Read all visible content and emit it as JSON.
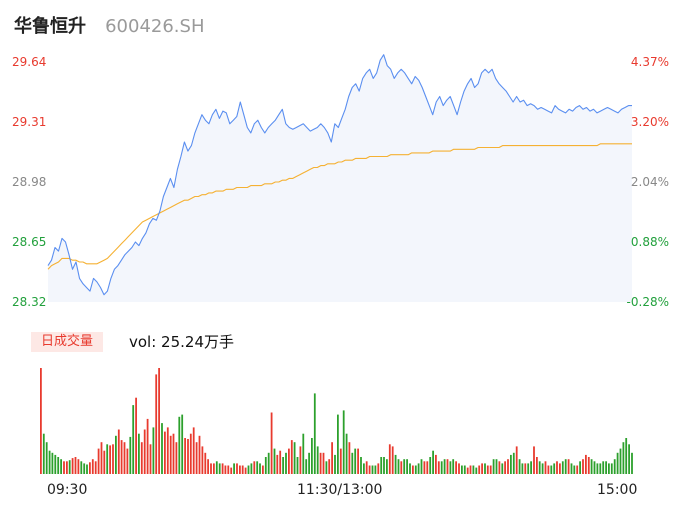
{
  "stock": {
    "name": "华鲁恒升",
    "code": "600426.SH"
  },
  "volume_panel": {
    "badge": "日成交量",
    "vol_label": "vol: 25.24万手"
  },
  "colors": {
    "price_line": "#5b8ff0",
    "avg_line": "#f5b133",
    "up": "#e83a2e",
    "down": "#2ca02c",
    "fill": "#f3f6fc",
    "axis_up": "#e83a2e",
    "axis_mid": "#888888",
    "axis_down": "#22a03c"
  },
  "chart_data": [
    {
      "type": "line",
      "title": "",
      "xlabel": "",
      "ylabel": "",
      "ylim": [
        28.32,
        29.64
      ],
      "y_ticks": [
        "29.64",
        "29.31",
        "28.98",
        "28.65",
        "28.32"
      ],
      "y2_ticks": [
        "4.37%",
        "3.20%",
        "2.04%",
        "0.88%",
        "-0.28%"
      ],
      "x_ticks": [
        "09:30",
        "11:30/13:00",
        "15:00"
      ],
      "series": [
        {
          "values": [
            28.52,
            28.55,
            28.62,
            28.6,
            28.67,
            28.65,
            28.58,
            28.5,
            28.54,
            28.45,
            28.42,
            28.4,
            28.38,
            28.45,
            28.43,
            28.4,
            28.36,
            28.38,
            28.45,
            28.5,
            28.52,
            28.55,
            28.58,
            28.6,
            28.62,
            28.65,
            28.63,
            28.67,
            28.7,
            28.75,
            28.78,
            28.77,
            28.82,
            28.9,
            28.95,
            29.0,
            28.95,
            29.05,
            29.12,
            29.2,
            29.15,
            29.18,
            29.25,
            29.3,
            29.35,
            29.32,
            29.3,
            29.35,
            29.38,
            29.33,
            29.37,
            29.36,
            29.3,
            29.32,
            29.34,
            29.42,
            29.35,
            29.28,
            29.25,
            29.3,
            29.32,
            29.28,
            29.25,
            29.28,
            29.3,
            29.32,
            29.35,
            29.38,
            29.3,
            29.28,
            29.27,
            29.28,
            29.29,
            29.3,
            29.28,
            29.26,
            29.27,
            29.28,
            29.3,
            29.28,
            29.25,
            29.2,
            29.3,
            29.28,
            29.33,
            29.38,
            29.45,
            29.5,
            29.52,
            29.48,
            29.55,
            29.58,
            29.6,
            29.55,
            29.58,
            29.65,
            29.68,
            29.62,
            29.6,
            29.55,
            29.58,
            29.6,
            29.58,
            29.55,
            29.52,
            29.56,
            29.54,
            29.5,
            29.45,
            29.4,
            29.35,
            29.42,
            29.45,
            29.4,
            29.43,
            29.45,
            29.4,
            29.35,
            29.42,
            29.48,
            29.52,
            29.55,
            29.5,
            29.52,
            29.58,
            29.6,
            29.58,
            29.6,
            29.55,
            29.52,
            29.5,
            29.48,
            29.45,
            29.42,
            29.45,
            29.42,
            29.43,
            29.4,
            29.41,
            29.4,
            29.38,
            29.39,
            29.38,
            29.37,
            29.36,
            29.4,
            29.38,
            29.37,
            29.36,
            29.38,
            29.37,
            29.39,
            29.4,
            29.38,
            29.39,
            29.37,
            29.38,
            29.36,
            29.37,
            29.38,
            29.39,
            29.38,
            29.37,
            29.36,
            29.38,
            29.39,
            29.4,
            29.4
          ]
        },
        {
          "values": [
            28.5,
            28.52,
            28.53,
            28.54,
            28.56,
            28.56,
            28.56,
            28.55,
            28.55,
            28.54,
            28.54,
            28.53,
            28.53,
            28.53,
            28.53,
            28.54,
            28.55,
            28.56,
            28.58,
            28.6,
            28.62,
            28.64,
            28.66,
            28.68,
            28.7,
            28.72,
            28.74,
            28.76,
            28.77,
            28.78,
            28.79,
            28.8,
            28.81,
            28.82,
            28.83,
            28.84,
            28.85,
            28.86,
            28.87,
            28.88,
            28.88,
            28.89,
            28.9,
            28.9,
            28.91,
            28.91,
            28.92,
            28.92,
            28.93,
            28.93,
            28.93,
            28.94,
            28.94,
            28.94,
            28.95,
            28.95,
            28.95,
            28.95,
            28.96,
            28.96,
            28.96,
            28.96,
            28.97,
            28.97,
            28.97,
            28.98,
            28.98,
            28.99,
            28.99,
            29.0,
            29.0,
            29.01,
            29.02,
            29.03,
            29.04,
            29.05,
            29.06,
            29.06,
            29.07,
            29.07,
            29.08,
            29.08,
            29.08,
            29.09,
            29.09,
            29.1,
            29.1,
            29.1,
            29.11,
            29.11,
            29.11,
            29.11,
            29.12,
            29.12,
            29.12,
            29.12,
            29.12,
            29.12,
            29.13,
            29.13,
            29.13,
            29.13,
            29.13,
            29.13,
            29.14,
            29.14,
            29.14,
            29.14,
            29.14,
            29.14,
            29.15,
            29.15,
            29.15,
            29.15,
            29.15,
            29.15,
            29.16,
            29.16,
            29.16,
            29.16,
            29.16,
            29.16,
            29.16,
            29.17,
            29.17,
            29.17,
            29.17,
            29.17,
            29.17,
            29.17,
            29.18,
            29.18,
            29.18,
            29.18,
            29.18,
            29.18,
            29.18,
            29.18,
            29.18,
            29.18,
            29.18,
            29.18,
            29.18,
            29.18,
            29.18,
            29.18,
            29.18,
            29.18,
            29.18,
            29.18,
            29.18,
            29.18,
            29.18,
            29.18,
            29.18,
            29.18,
            29.18,
            29.18,
            29.19,
            29.19,
            29.19,
            29.19,
            29.19,
            29.19,
            29.19,
            29.19,
            29.19,
            29.19
          ]
        }
      ]
    },
    {
      "type": "bar",
      "title": "",
      "xlabel": "",
      "ylabel": "",
      "ylim": [
        0,
        100
      ],
      "values": [
        100,
        38,
        30,
        22,
        20,
        18,
        16,
        14,
        12,
        12,
        13,
        15,
        16,
        14,
        12,
        10,
        9,
        11,
        14,
        12,
        24,
        30,
        22,
        28,
        27,
        28,
        36,
        42,
        32,
        30,
        24,
        35,
        65,
        72,
        38,
        30,
        42,
        52,
        28,
        44,
        94,
        100,
        48,
        40,
        44,
        36,
        38,
        30,
        54,
        56,
        34,
        33,
        38,
        44,
        30,
        36,
        26,
        20,
        14,
        10,
        10,
        12,
        10,
        10,
        8,
        8,
        6,
        10,
        10,
        8,
        8,
        6,
        8,
        10,
        12,
        12,
        10,
        8,
        16,
        20,
        58,
        24,
        18,
        22,
        16,
        20,
        24,
        32,
        30,
        16,
        26,
        38,
        14,
        20,
        34,
        76,
        26,
        20,
        20,
        12,
        14,
        30,
        18,
        56,
        24,
        60,
        38,
        30,
        20,
        24,
        24,
        16,
        10,
        12,
        8,
        8,
        8,
        10,
        16,
        16,
        14,
        28,
        26,
        18,
        14,
        12,
        14,
        14,
        10,
        8,
        8,
        10,
        14,
        12,
        12,
        16,
        22,
        18,
        12,
        12,
        14,
        14,
        12,
        14,
        12,
        10,
        8,
        8,
        6,
        8,
        8,
        6,
        8,
        10,
        10,
        8,
        8,
        14,
        14,
        12,
        10,
        12,
        14,
        18,
        20,
        26,
        14,
        10,
        10,
        10,
        12,
        26,
        16,
        12,
        10,
        12,
        8,
        8,
        10,
        12,
        10,
        12,
        14,
        14,
        10,
        8,
        8,
        12,
        14,
        18,
        16,
        14,
        12,
        10,
        10,
        12,
        12,
        10,
        10,
        14,
        20,
        24,
        30,
        34,
        28,
        20
      ],
      "directions": "uddddddduuduuuddduuuuuuduuduuuudduduuuuduuduuuuudduuuuuuuuuuudduuuuduuuudduddudduduudduuddudddddduuduuddudduddudduudduddduudduddduddduudduuddudduudduudduuduudduduudduddudduudduudduuddudduduuu"
    }
  ]
}
